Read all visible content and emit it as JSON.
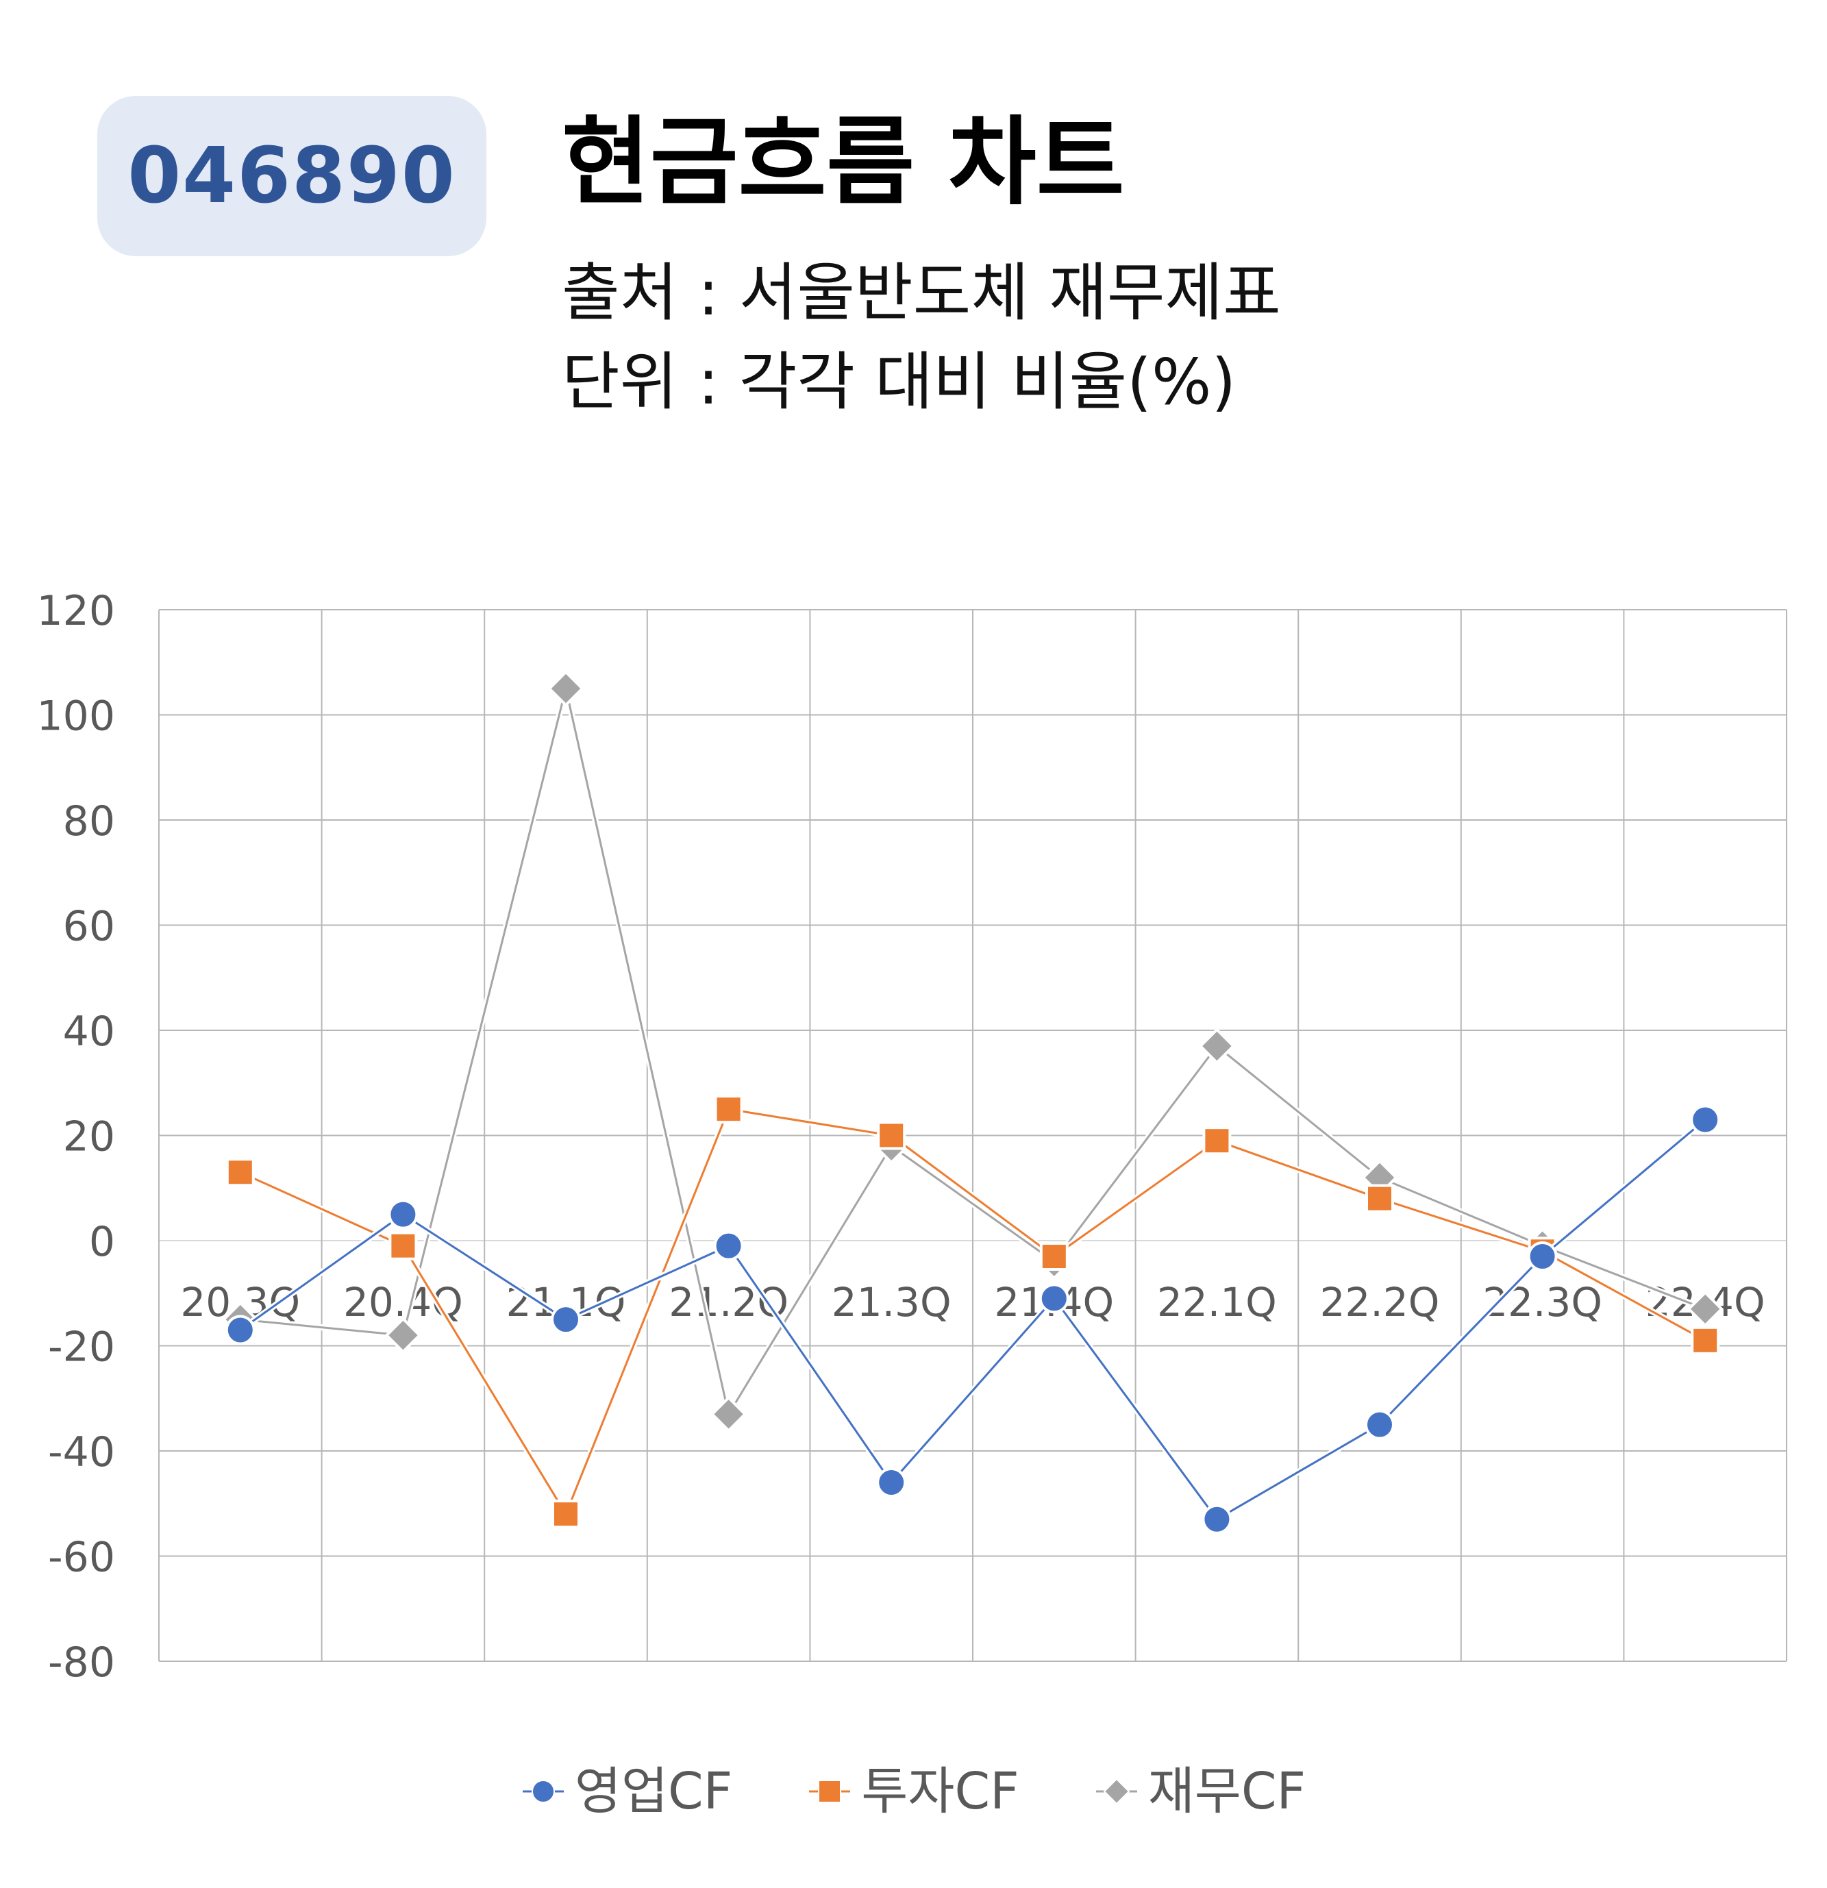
{
  "header": {
    "code": "046890",
    "title": "현금흐름 차트",
    "source": "출처 : 서울반도체 재무제표",
    "unit": "단위 : 각각 대비 비율(%)"
  },
  "colors": {
    "operating": "#4472c4",
    "investing": "#ed7d31",
    "financing": "#a5a5a5",
    "grid": "#b7b7b7",
    "axis_text": "#595959",
    "badge_bg": "#e3e9f5",
    "badge_text": "#2f5597"
  },
  "chart_data": {
    "type": "line",
    "title": "",
    "xlabel": "",
    "ylabel": "",
    "categories": [
      "20.3Q",
      "20.4Q",
      "21.1Q",
      "21.2Q",
      "21.3Q",
      "21.4Q",
      "22.1Q",
      "22.2Q",
      "22.3Q",
      "22.4Q"
    ],
    "ylim": [
      -80,
      120
    ],
    "yticks": [
      120,
      100,
      80,
      60,
      40,
      20,
      0,
      -20,
      -40,
      -60,
      -80
    ],
    "grid": true,
    "legend_position": "bottom",
    "series": [
      {
        "name": "영업CF",
        "marker": "circle",
        "color": "#4472c4",
        "values": [
          -17,
          5,
          -15,
          -1,
          -46,
          -11,
          -53,
          -35,
          -3,
          23
        ]
      },
      {
        "name": "투자CF",
        "marker": "square",
        "color": "#ed7d31",
        "values": [
          13,
          -1,
          -52,
          25,
          20,
          -3,
          19,
          8,
          -2,
          -19
        ]
      },
      {
        "name": "재무CF",
        "marker": "diamond",
        "color": "#a5a5a5",
        "values": [
          -15,
          -18,
          105,
          -33,
          18,
          -4,
          37,
          12,
          -1,
          -13
        ]
      }
    ]
  }
}
